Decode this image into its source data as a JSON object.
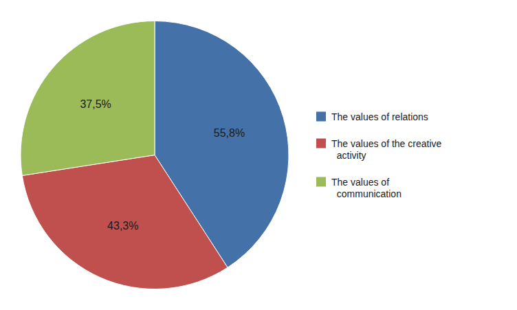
{
  "chart_data": {
    "type": "pie",
    "categories": [
      "The values of relations",
      "The values of the creative\n  activity",
      "The values of\n  communication"
    ],
    "values": [
      55.8,
      43.3,
      37.5
    ],
    "value_labels": [
      "55,8%",
      "43,3%",
      "37,5%"
    ],
    "colors": [
      "#4472a8",
      "#c0504d",
      "#9bbb59"
    ],
    "data_labels": true,
    "legend": "right"
  }
}
